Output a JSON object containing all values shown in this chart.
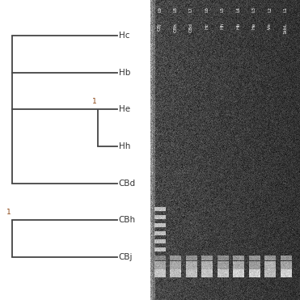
{
  "taxa": [
    "Hc",
    "Hb",
    "He",
    "Hh",
    "CBd",
    "CBh",
    "CBj"
  ],
  "label_color": "#333333",
  "node_label_color": "#8B4513",
  "background_color": "#ffffff",
  "line_color": "#444444",
  "line_width": 1.3,
  "gel_lanes_top": [
    "L9",
    "L8",
    "L7",
    "L6",
    "L5",
    "L4",
    "L3",
    "L2",
    "L1"
  ],
  "gel_lanes_bot": [
    "CBj",
    "CBh",
    "CBd",
    "Hc",
    "Hh",
    "Hb",
    "He",
    "-Ve",
    "1kbL"
  ],
  "fig_width": 3.71,
  "fig_height": 3.71
}
